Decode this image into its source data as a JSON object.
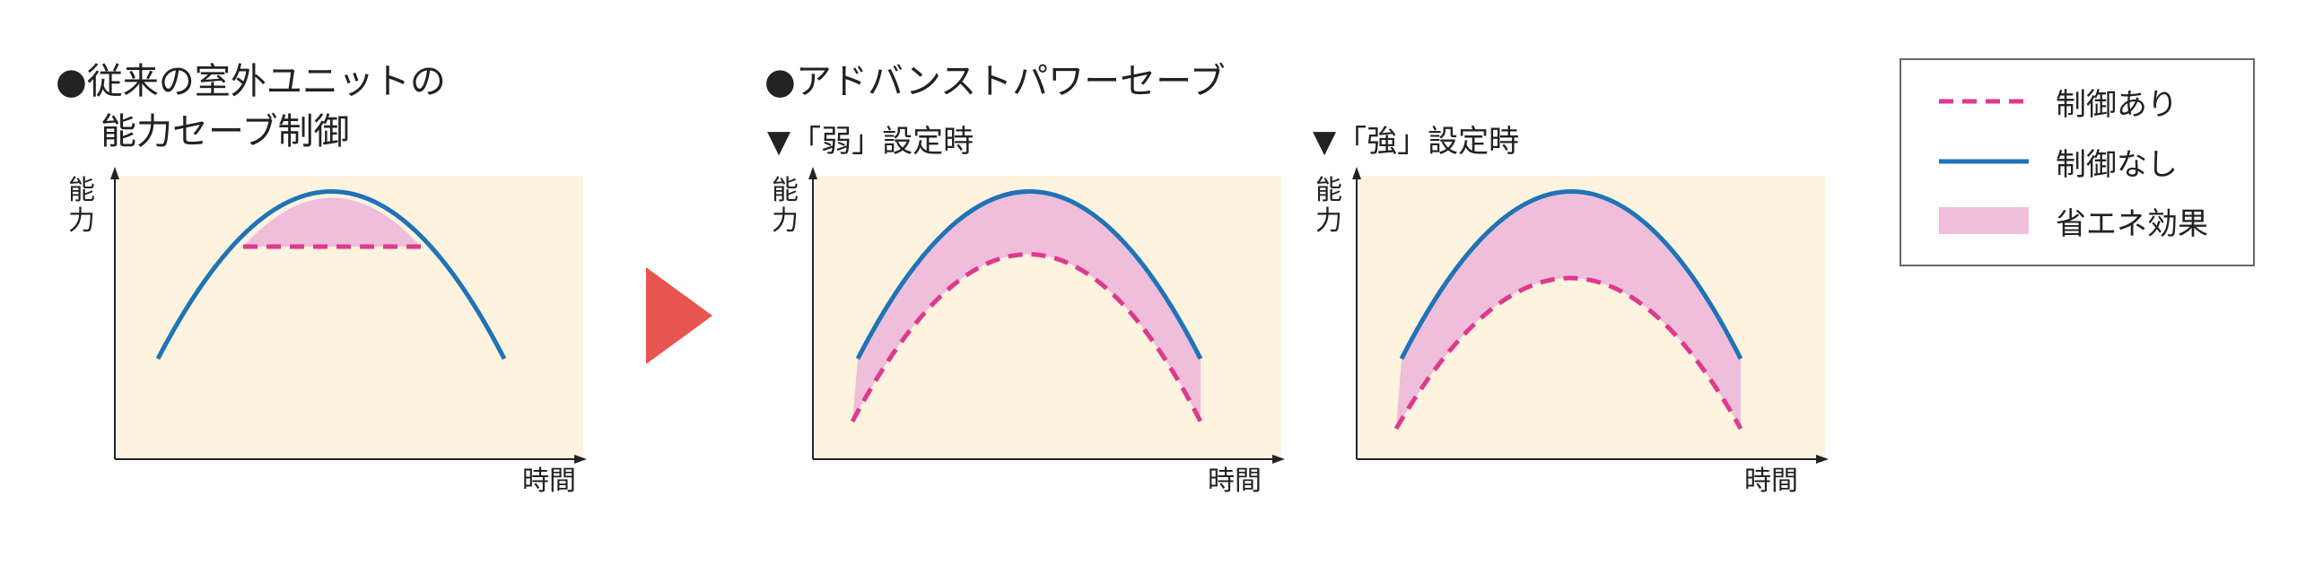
{
  "colors": {
    "bg_panel": "#fdf3df",
    "curve_without": "#1f73b7",
    "curve_with": "#e0388f",
    "fill_saving": "#efbedb",
    "arrow": "#e85450",
    "axis": "#222222"
  },
  "left": {
    "heading_line1": "●従来の室外ユニットの",
    "heading_line2": "能力セーブ制御",
    "y_label": [
      "能",
      "力"
    ],
    "x_label": "時間"
  },
  "right": {
    "heading": "●アドバンストパワーセーブ",
    "weak": {
      "sub": "▼「弱」設定時",
      "y_label": [
        "能",
        "力"
      ],
      "x_label": "時間"
    },
    "strong": {
      "sub": "▼「強」設定時",
      "y_label": [
        "能",
        "力"
      ],
      "x_label": "時間"
    }
  },
  "legend": {
    "items": [
      {
        "label": "制御あり",
        "kind": "dashed",
        "color": "#e0388f"
      },
      {
        "label": "制御なし",
        "kind": "solid",
        "color": "#1f73b7"
      },
      {
        "label": "省エネ効果",
        "kind": "fill",
        "color": "#efbedb"
      }
    ]
  }
}
